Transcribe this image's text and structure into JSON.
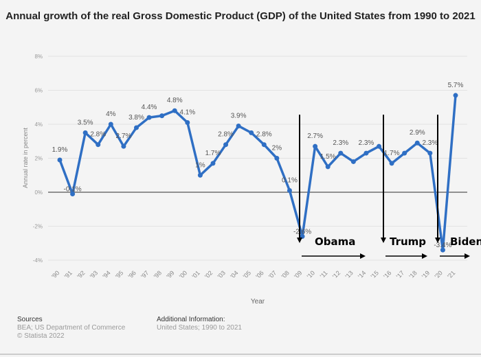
{
  "chart_data": {
    "type": "line",
    "title": "Annual growth of the real Gross Domestic Product (GDP) of the United States from 1990 to 2021",
    "xlabel": "Year",
    "ylabel": "Annual rate in percent",
    "ylim": [
      -4,
      8
    ],
    "yticks": [
      8,
      6,
      4,
      2,
      0,
      -2,
      -4
    ],
    "ytick_labels": [
      "8%",
      "6%",
      "4%",
      "2%",
      "0%",
      "-2%",
      "-4%"
    ],
    "grid": true,
    "categories": [
      "'90",
      "'91",
      "'92",
      "'93",
      "'94",
      "'95",
      "'96",
      "'97",
      "'98",
      "'99",
      "'00",
      "'01",
      "'02",
      "'03",
      "'04",
      "'05",
      "'06",
      "'07",
      "'08",
      "'09",
      "'10",
      "'11",
      "'12",
      "'13",
      "'14",
      "'15",
      "'16",
      "'17",
      "'18",
      "'19",
      "'20",
      "'21"
    ],
    "series": [
      {
        "name": "GDP growth",
        "color": "#2f6fc4",
        "values": [
          1.9,
          -0.1,
          3.5,
          2.8,
          4.0,
          2.7,
          3.8,
          4.4,
          4.5,
          4.8,
          4.1,
          1.0,
          1.7,
          2.8,
          3.9,
          3.5,
          2.8,
          2.0,
          0.1,
          -2.6,
          2.7,
          1.5,
          2.3,
          1.8,
          2.3,
          2.7,
          1.7,
          2.3,
          2.9,
          2.3,
          -3.4,
          5.7
        ],
        "labels": [
          "1.9%",
          "-0.1%",
          "3.5%",
          "2.8%",
          "4%",
          "2.7%",
          "3.8%",
          "4.4%",
          "",
          "4.8%",
          "4.1%",
          "1%",
          "1.7%",
          "2.8%",
          "3.9%",
          "",
          "2.8%",
          "2%",
          "0.1%",
          "-2.6%",
          "2.7%",
          "1.5%",
          "2.3%",
          "",
          "2.3%",
          "",
          "1.7%",
          "",
          "2.9%",
          "2.3%",
          "-3.4%",
          "5.7%"
        ]
      }
    ],
    "annotations": [
      {
        "text": "Obama",
        "start": "'09",
        "end": "'15"
      },
      {
        "text": "Trump",
        "start": "'16",
        "end": "'19"
      },
      {
        "text": "Biden",
        "start": "'20",
        "end": "'21"
      }
    ]
  },
  "footer": {
    "sources_heading": "Sources",
    "sources_line1": "BEA; US Department of Commerce",
    "sources_line2": "© Statista 2022",
    "additional_heading": "Additional Information:",
    "additional_line": "United States; 1990 to 2021"
  }
}
